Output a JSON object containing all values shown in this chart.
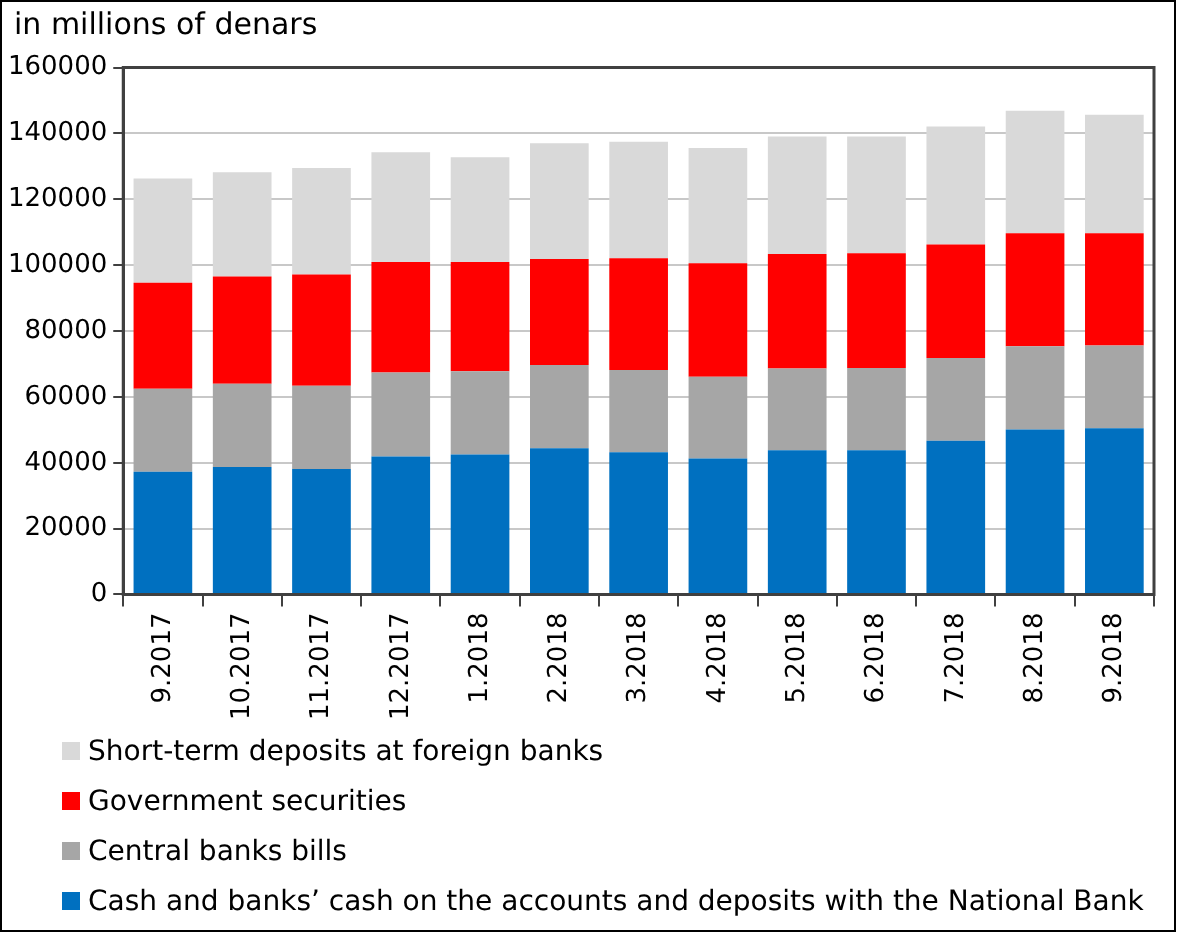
{
  "chart_data": {
    "type": "bar",
    "title": "in millions of denars",
    "stacked": true,
    "categories": [
      "9.2017",
      "10.2017",
      "11.2017",
      "12.2017",
      "1.2018",
      "2.2018",
      "3.2018",
      "4.2018",
      "5.2018",
      "6.2018",
      "7.2018",
      "8.2018",
      "9.2018"
    ],
    "series": [
      {
        "name": "Cash and banks’ cash on the accounts and deposits with the National Bank",
        "color": "#0070c0",
        "values": [
          37300,
          38700,
          38100,
          41900,
          42500,
          44400,
          43200,
          41300,
          43800,
          43800,
          46700,
          50100,
          50500
        ]
      },
      {
        "name": "Central banks bills",
        "color": "#a6a6a6",
        "values": [
          25200,
          25300,
          25300,
          25500,
          25300,
          25300,
          25000,
          24800,
          24800,
          25000,
          25100,
          25300,
          25100
        ]
      },
      {
        "name": "Government securities",
        "color": "#ff0000",
        "values": [
          32200,
          32600,
          33800,
          33600,
          33200,
          32200,
          33900,
          34500,
          34800,
          34800,
          34500,
          34300,
          34100
        ]
      },
      {
        "name": "Short-term deposits at foreign banks",
        "color": "#d9d9d9",
        "values": [
          31600,
          31600,
          32300,
          33300,
          31800,
          35100,
          35400,
          35000,
          35700,
          35500,
          35800,
          37200,
          36000
        ]
      }
    ],
    "ylim": [
      0,
      160000
    ],
    "yticks": [
      0,
      20000,
      40000,
      60000,
      80000,
      100000,
      120000,
      140000,
      160000
    ],
    "grid": "y",
    "legend": "bottom"
  }
}
